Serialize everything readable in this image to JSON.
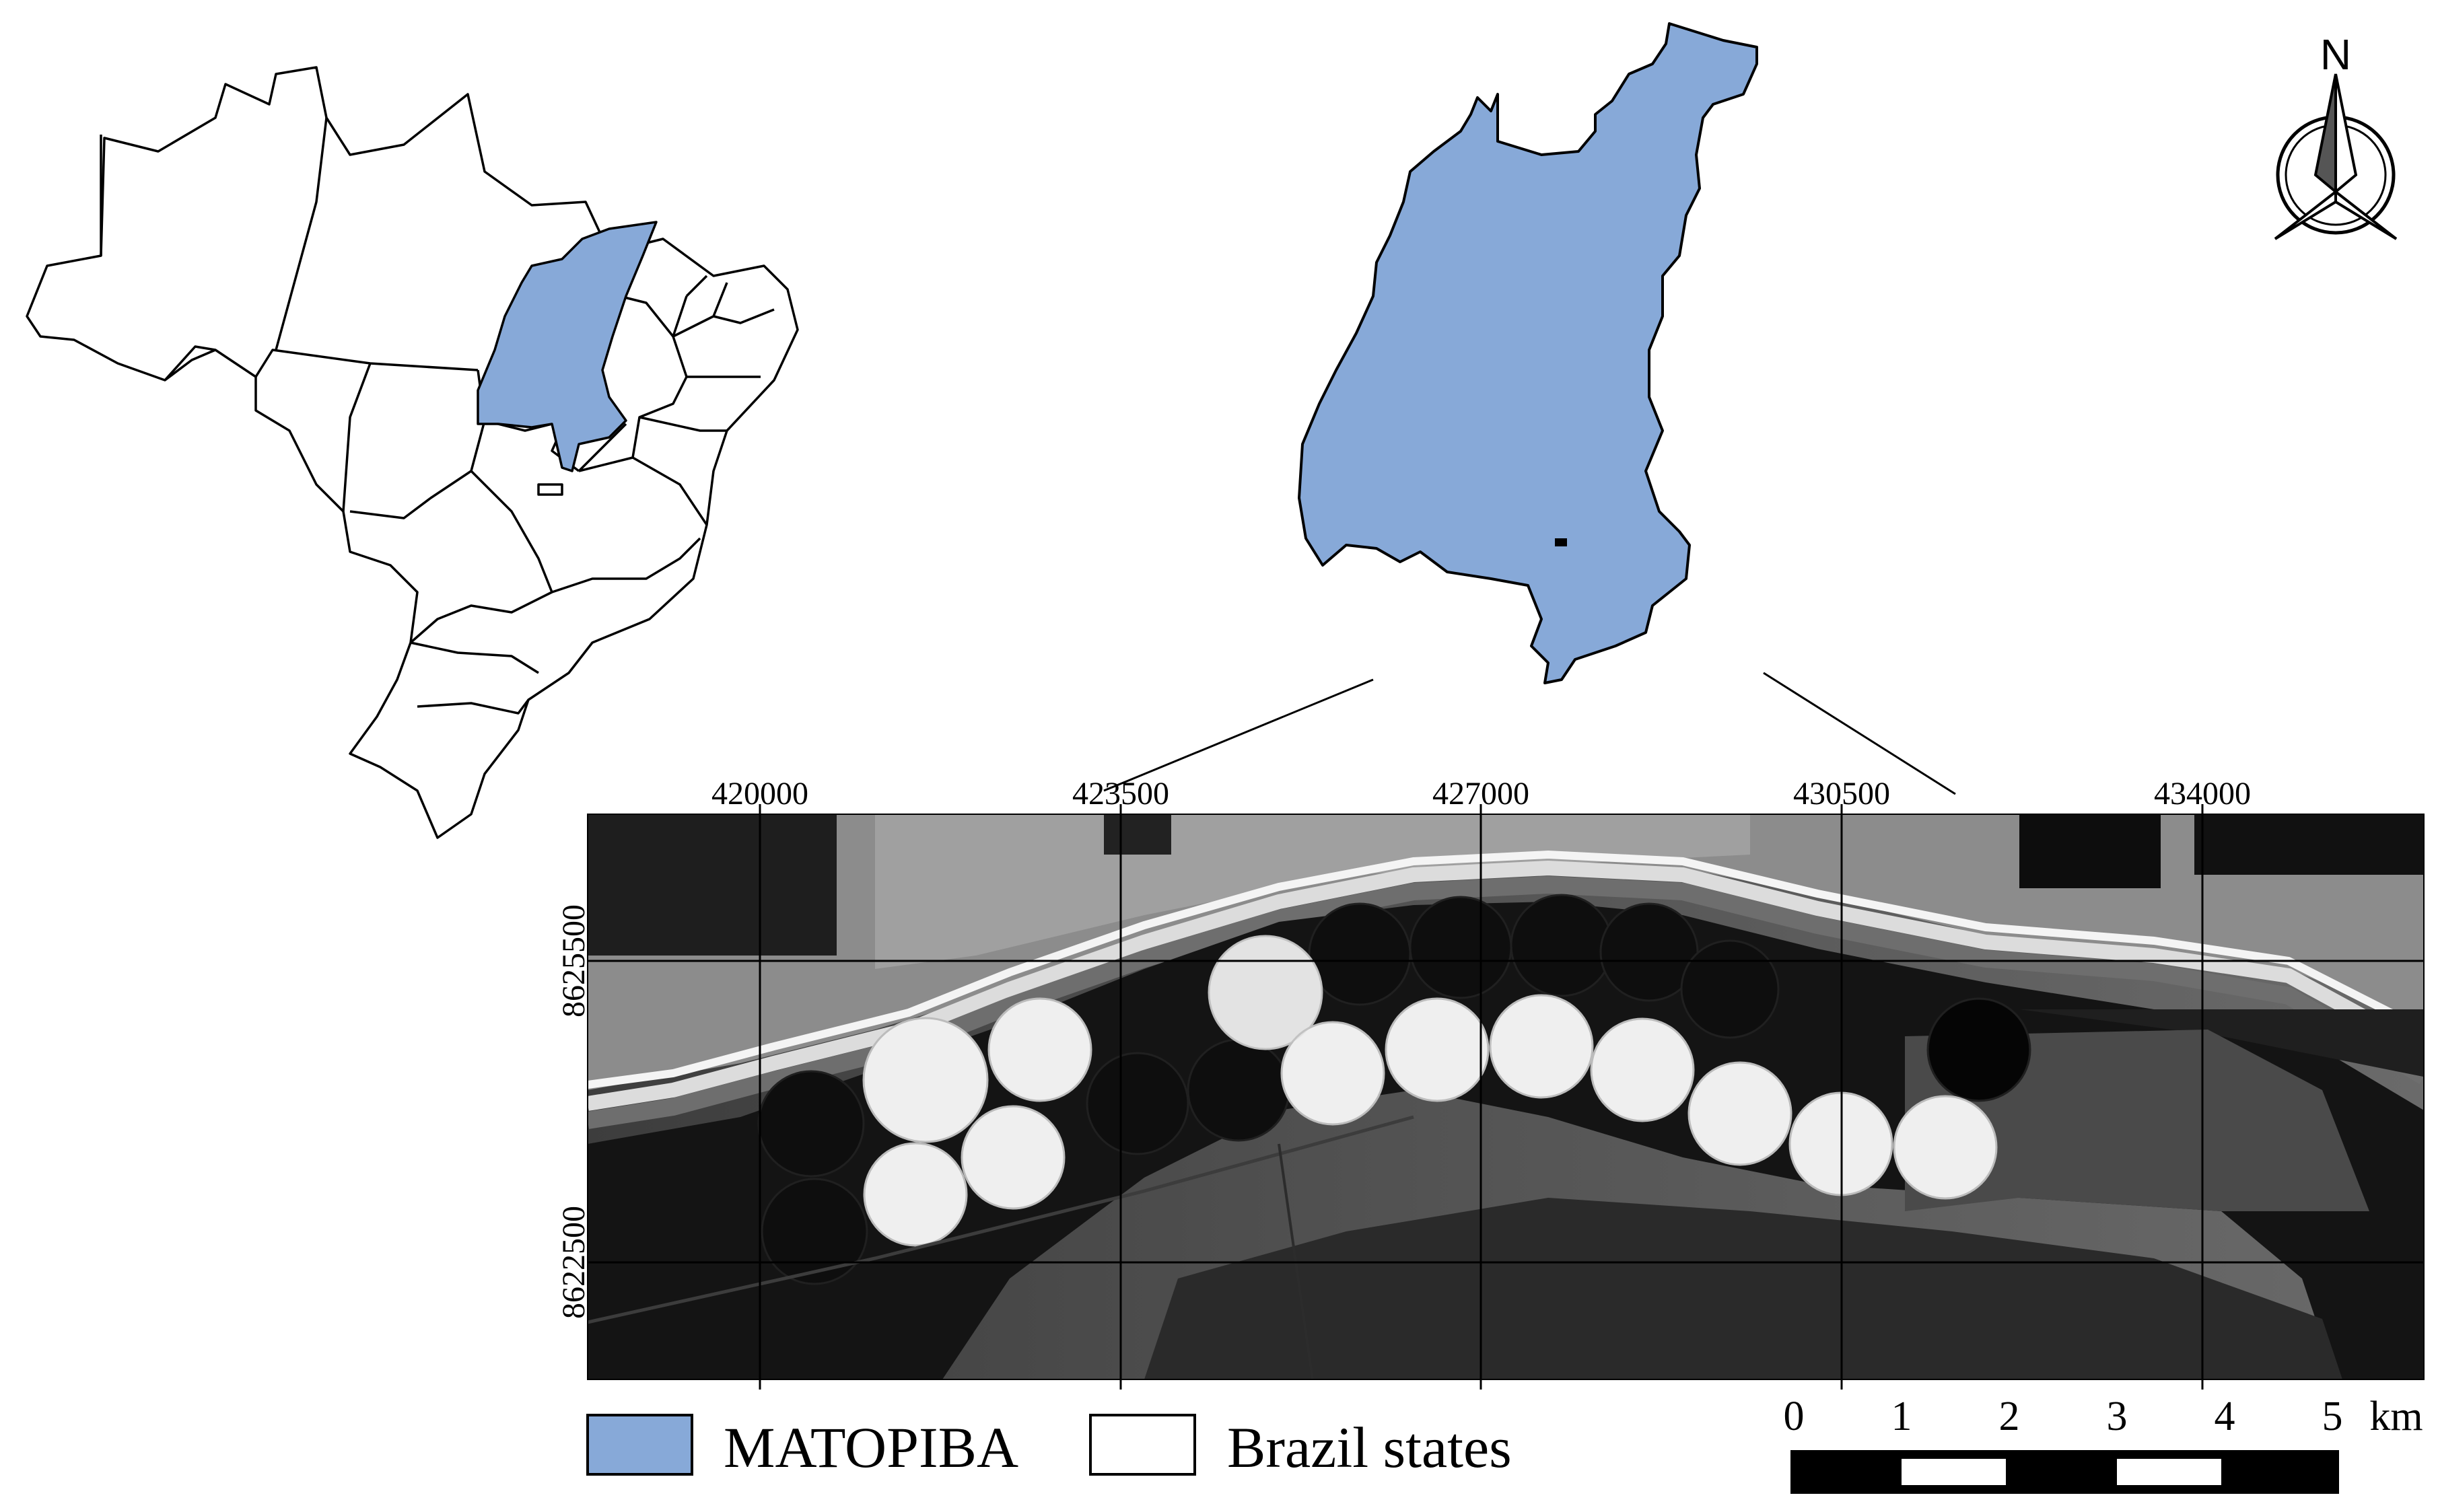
{
  "colors": {
    "matopiba_fill": "#87a9d8",
    "state_fill": "#ffffff",
    "outline": "#000000",
    "imagery_dark": "#141414",
    "pivot_bright": "#f2f2f2"
  },
  "north_arrow": {
    "label": "N",
    "icon": "north-arrow-icon"
  },
  "grid_labels": {
    "eastings": [
      "420000",
      "423500",
      "427000",
      "430500",
      "434000"
    ],
    "northings": [
      "8625500",
      "8622500"
    ]
  },
  "legend": {
    "items": [
      {
        "label": "MATOPIBA",
        "color": "#87a9d8"
      },
      {
        "label": "Brazil states",
        "color": "#ffffff"
      }
    ]
  },
  "scale_bar": {
    "ticks": [
      "0",
      "1",
      "2",
      "3",
      "4",
      "5"
    ],
    "unit": "km"
  }
}
